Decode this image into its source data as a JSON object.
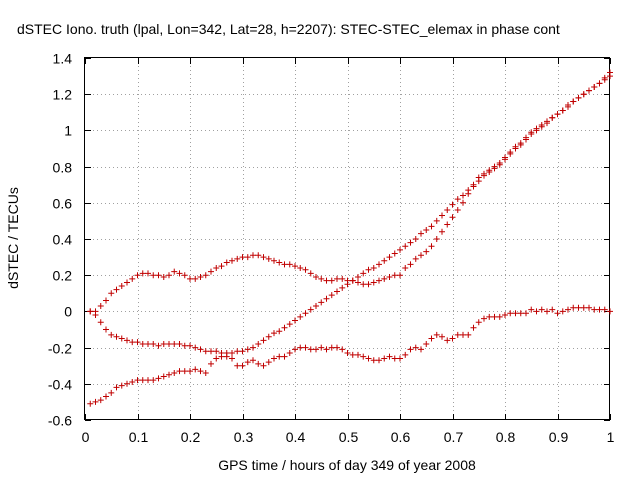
{
  "chart_data": {
    "type": "scatter",
    "title": "dSTEC Iono. truth (lpal, Lon=342, Lat=28, h=2207): STEC-STEC_elemax in phase cont",
    "xlabel": "GPS time / hours of day 349 of year 2008",
    "ylabel": "dSTEC  / TECUs",
    "xlim": [
      0,
      1
    ],
    "ylim": [
      -0.6,
      1.4
    ],
    "xticks": [
      "0",
      "0.1",
      "0.2",
      "0.3",
      "0.4",
      "0.5",
      "0.6",
      "0.7",
      "0.8",
      "0.9",
      "1"
    ],
    "yticks": [
      "-0.6",
      "-0.4",
      "-0.2",
      "0",
      "0.2",
      "0.4",
      "0.6",
      "0.8",
      "1",
      "1.2",
      "1.4"
    ],
    "grid": true,
    "marker": "+",
    "color": "#c00000",
    "series": [
      {
        "x": [
          0.01,
          0.02,
          0.03,
          0.04,
          0.05,
          0.06,
          0.07,
          0.08,
          0.09,
          0.1,
          0.11,
          0.12,
          0.13,
          0.14,
          0.15,
          0.16,
          0.17,
          0.18,
          0.19,
          0.2,
          0.21,
          0.22,
          0.23,
          0.24,
          0.25,
          0.26,
          0.27,
          0.28,
          0.29,
          0.3,
          0.31,
          0.32,
          0.33,
          0.34,
          0.35,
          0.36,
          0.37,
          0.38,
          0.39,
          0.4,
          0.41,
          0.42,
          0.43,
          0.44,
          0.45,
          0.46,
          0.47,
          0.48,
          0.49,
          0.5,
          0.51,
          0.52,
          0.53,
          0.54,
          0.55,
          0.56,
          0.57,
          0.58,
          0.59,
          0.6,
          0.61,
          0.62,
          0.63,
          0.64,
          0.65,
          0.66,
          0.67,
          0.68,
          0.69,
          0.7,
          0.71,
          0.72,
          0.73,
          0.74,
          0.75,
          0.76,
          0.77,
          0.78,
          0.79,
          0.8,
          0.81,
          0.82,
          0.83,
          0.84,
          0.85,
          0.86,
          0.87,
          0.88,
          0.89,
          0.9,
          0.91,
          0.92,
          0.93,
          0.94,
          0.95,
          0.96,
          0.97,
          0.98,
          0.99,
          1.0
        ],
        "y": [
          0.0,
          0.0,
          0.03,
          0.06,
          0.1,
          0.12,
          0.14,
          0.16,
          0.18,
          0.2,
          0.21,
          0.21,
          0.2,
          0.2,
          0.19,
          0.2,
          0.22,
          0.21,
          0.2,
          0.18,
          0.18,
          0.19,
          0.2,
          0.22,
          0.24,
          0.25,
          0.27,
          0.28,
          0.29,
          0.3,
          0.3,
          0.31,
          0.31,
          0.3,
          0.29,
          0.28,
          0.27,
          0.26,
          0.26,
          0.25,
          0.24,
          0.23,
          0.21,
          0.19,
          0.18,
          0.17,
          0.17,
          0.18,
          0.18,
          0.17,
          0.17,
          0.16,
          0.15,
          0.15,
          0.16,
          0.17,
          0.18,
          0.19,
          0.2,
          0.2,
          0.24,
          0.26,
          0.29,
          0.31,
          0.33,
          0.36,
          0.4,
          0.44,
          0.48,
          0.52,
          0.56,
          0.6,
          0.65,
          0.7,
          0.74,
          0.76,
          0.78,
          0.8,
          0.82,
          0.85,
          0.88,
          0.91,
          0.93,
          0.96,
          0.99,
          1.01,
          1.03,
          1.05,
          1.07,
          1.09,
          1.11,
          1.13,
          1.16,
          1.18,
          1.2,
          1.22,
          1.24,
          1.26,
          1.29,
          1.32
        ]
      },
      {
        "x": [
          0.01,
          0.02,
          0.03,
          0.04,
          0.05,
          0.06,
          0.07,
          0.08,
          0.09,
          0.1,
          0.11,
          0.12,
          0.13,
          0.14,
          0.15,
          0.16,
          0.17,
          0.18,
          0.19,
          0.2,
          0.21,
          0.22,
          0.23,
          0.24,
          0.25,
          0.26,
          0.27,
          0.28,
          0.29,
          0.3,
          0.31,
          0.32,
          0.33,
          0.34,
          0.35,
          0.36,
          0.37,
          0.38,
          0.39,
          0.4,
          0.41,
          0.42,
          0.43,
          0.44,
          0.45,
          0.46,
          0.47,
          0.48,
          0.49,
          0.5,
          0.51,
          0.52,
          0.53,
          0.54,
          0.55,
          0.56,
          0.57,
          0.58,
          0.59,
          0.6,
          0.61,
          0.62,
          0.63,
          0.64,
          0.65,
          0.66,
          0.67,
          0.68,
          0.69,
          0.7,
          0.71,
          0.72,
          0.73,
          0.74,
          0.75,
          0.76,
          0.77,
          0.78,
          0.79,
          0.8,
          0.81,
          0.82,
          0.83,
          0.84,
          0.85,
          0.86,
          0.87,
          0.88,
          0.89,
          0.9,
          0.91,
          0.92,
          0.93,
          0.94,
          0.95,
          0.96,
          0.97,
          0.98,
          0.99,
          1.0
        ],
        "y": [
          0.0,
          -0.02,
          -0.06,
          -0.1,
          -0.13,
          -0.14,
          -0.15,
          -0.16,
          -0.17,
          -0.17,
          -0.18,
          -0.18,
          -0.18,
          -0.19,
          -0.18,
          -0.18,
          -0.18,
          -0.18,
          -0.19,
          -0.19,
          -0.2,
          -0.21,
          -0.22,
          -0.22,
          -0.22,
          -0.23,
          -0.23,
          -0.23,
          -0.22,
          -0.22,
          -0.21,
          -0.2,
          -0.18,
          -0.16,
          -0.14,
          -0.12,
          -0.11,
          -0.09,
          -0.07,
          -0.05,
          -0.03,
          -0.01,
          0.01,
          0.03,
          0.05,
          0.07,
          0.09,
          0.11,
          0.13,
          0.15,
          0.17,
          0.19,
          0.21,
          0.23,
          0.24,
          0.26,
          0.28,
          0.3,
          0.32,
          0.34,
          0.36,
          0.38,
          0.4,
          0.43,
          0.45,
          0.47,
          0.5,
          0.53,
          0.56,
          0.59,
          0.62,
          0.64,
          0.67,
          0.69,
          0.72,
          0.75,
          0.77,
          0.79,
          0.81,
          0.84,
          0.87,
          0.9,
          0.92,
          0.95,
          0.98,
          1.0,
          1.02,
          1.04,
          1.07,
          1.09,
          1.11,
          1.14,
          1.16,
          1.18,
          1.2,
          1.22,
          1.24,
          1.26,
          1.28,
          1.3
        ]
      },
      {
        "x": [
          0.01,
          0.02,
          0.03,
          0.04,
          0.05,
          0.06,
          0.07,
          0.08,
          0.09,
          0.1,
          0.11,
          0.12,
          0.13,
          0.14,
          0.15,
          0.16,
          0.17,
          0.18,
          0.19,
          0.2,
          0.21,
          0.22,
          0.23,
          0.24,
          0.25,
          0.26,
          0.27,
          0.28,
          0.29,
          0.3,
          0.31,
          0.32,
          0.33,
          0.34,
          0.35,
          0.36,
          0.37,
          0.38,
          0.39,
          0.4,
          0.41,
          0.42,
          0.43,
          0.44,
          0.45,
          0.46,
          0.47,
          0.48,
          0.49,
          0.5,
          0.51,
          0.52,
          0.53,
          0.54,
          0.55,
          0.56,
          0.57,
          0.58,
          0.59,
          0.6,
          0.61,
          0.62,
          0.63,
          0.64,
          0.65,
          0.66,
          0.67,
          0.68,
          0.69,
          0.7,
          0.71,
          0.72,
          0.73,
          0.74,
          0.75,
          0.76,
          0.77,
          0.78,
          0.79,
          0.8,
          0.81,
          0.82,
          0.83,
          0.84,
          0.85,
          0.86,
          0.87,
          0.88,
          0.89,
          0.9,
          0.91,
          0.92,
          0.93,
          0.94,
          0.95,
          0.96,
          0.97,
          0.98,
          0.99,
          1.0
        ],
        "y": [
          -0.51,
          -0.5,
          -0.49,
          -0.47,
          -0.45,
          -0.42,
          -0.41,
          -0.4,
          -0.39,
          -0.38,
          -0.38,
          -0.38,
          -0.38,
          -0.37,
          -0.36,
          -0.35,
          -0.34,
          -0.33,
          -0.33,
          -0.33,
          -0.32,
          -0.33,
          -0.34,
          -0.29,
          -0.26,
          -0.25,
          -0.25,
          -0.26,
          -0.3,
          -0.3,
          -0.28,
          -0.27,
          -0.29,
          -0.3,
          -0.28,
          -0.26,
          -0.25,
          -0.25,
          -0.23,
          -0.21,
          -0.2,
          -0.2,
          -0.21,
          -0.21,
          -0.2,
          -0.21,
          -0.2,
          -0.2,
          -0.21,
          -0.23,
          -0.24,
          -0.24,
          -0.25,
          -0.26,
          -0.27,
          -0.27,
          -0.26,
          -0.25,
          -0.26,
          -0.26,
          -0.24,
          -0.21,
          -0.2,
          -0.21,
          -0.18,
          -0.15,
          -0.13,
          -0.14,
          -0.16,
          -0.15,
          -0.13,
          -0.13,
          -0.13,
          -0.09,
          -0.06,
          -0.04,
          -0.03,
          -0.03,
          -0.03,
          -0.02,
          -0.01,
          -0.01,
          -0.01,
          -0.01,
          0.01,
          0.0,
          0.01,
          0.0,
          0.01,
          -0.01,
          0.0,
          0.01,
          0.02,
          0.02,
          0.02,
          0.02,
          0.01,
          0.01,
          0.01,
          0.0
        ]
      }
    ]
  }
}
